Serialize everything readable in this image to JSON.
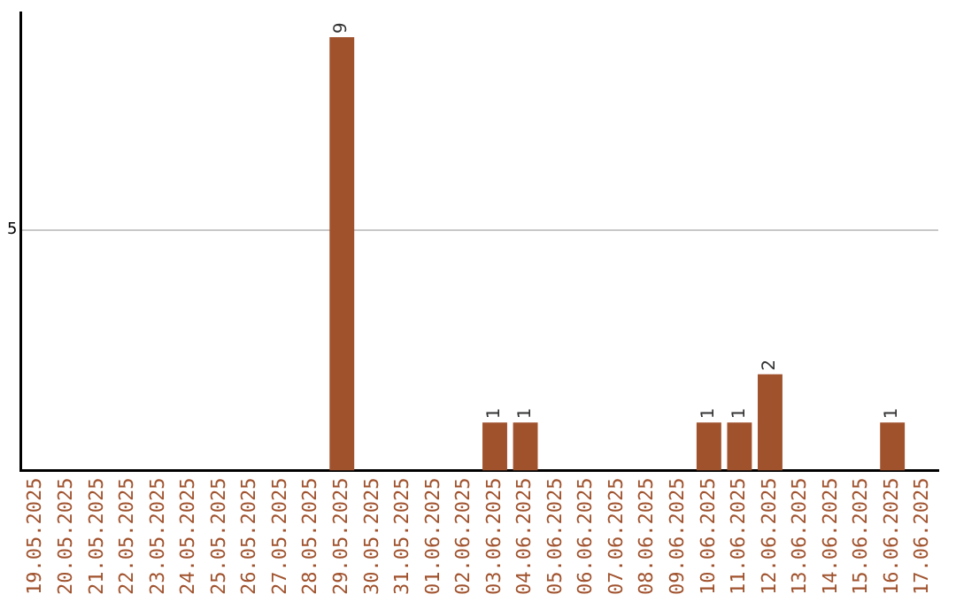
{
  "chart_data": {
    "type": "bar",
    "categories": [
      "19.05.2025",
      "20.05.2025",
      "21.05.2025",
      "22.05.2025",
      "23.05.2025",
      "24.05.2025",
      "25.05.2025",
      "26.05.2025",
      "27.05.2025",
      "28.05.2025",
      "29.05.2025",
      "30.05.2025",
      "31.05.2025",
      "01.06.2025",
      "02.06.2025",
      "03.06.2025",
      "04.06.2025",
      "05.06.2025",
      "06.06.2025",
      "07.06.2025",
      "08.06.2025",
      "09.06.2025",
      "10.06.2025",
      "11.06.2025",
      "12.06.2025",
      "13.06.2025",
      "14.06.2025",
      "15.06.2025",
      "16.06.2025",
      "17.06.2025"
    ],
    "values": [
      0,
      0,
      0,
      0,
      0,
      0,
      0,
      0,
      0,
      0,
      9,
      0,
      0,
      0,
      0,
      1,
      1,
      0,
      0,
      0,
      0,
      0,
      1,
      1,
      2,
      0,
      0,
      0,
      1,
      0
    ],
    "value_labels": [
      null,
      null,
      null,
      null,
      null,
      null,
      null,
      null,
      null,
      null,
      "9",
      null,
      null,
      null,
      null,
      "1",
      "1",
      null,
      null,
      null,
      null,
      null,
      "1",
      "1",
      "2",
      null,
      null,
      null,
      "1",
      null
    ],
    "color": "#a0522d",
    "ylim": [
      0,
      9.5
    ],
    "yticks": [
      5
    ],
    "grid": "y",
    "legend": false
  }
}
